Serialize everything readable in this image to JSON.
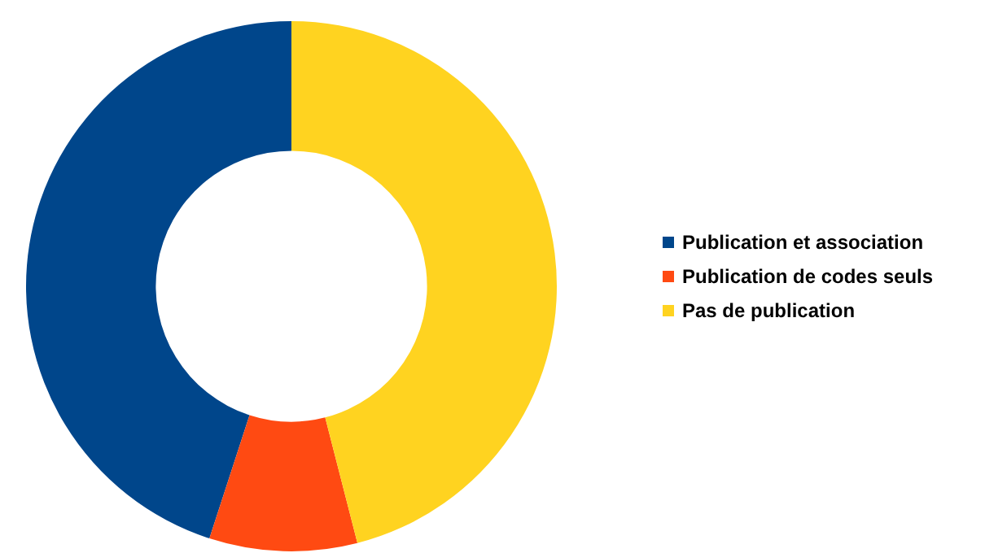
{
  "chart_data": {
    "type": "donut",
    "categories": [
      "Publication et association",
      "Publication de codes seuls",
      "Pas de publication"
    ],
    "values": [
      45,
      9,
      46
    ],
    "colors": [
      "#00468b",
      "#ff4a12",
      "#ffd320"
    ],
    "legend": "right"
  }
}
